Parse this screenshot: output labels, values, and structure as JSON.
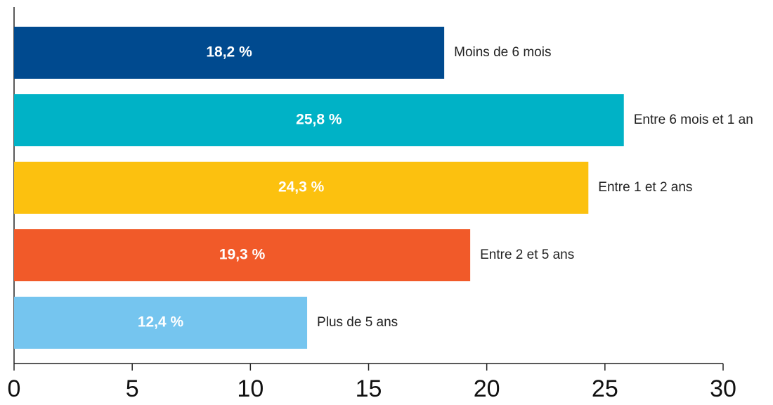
{
  "chart_data": {
    "type": "bar",
    "orientation": "horizontal",
    "categories": [
      "Moins de 6 mois",
      "Entre 6 mois et 1 an",
      "Entre 1 et 2 ans",
      "Entre 2 et 5 ans",
      "Plus de 5 ans"
    ],
    "values": [
      18.2,
      25.8,
      24.3,
      19.3,
      12.4
    ],
    "value_labels": [
      "18,2 %",
      "25,8 %",
      "24,3 %",
      "19,3 %",
      "12,4 %"
    ],
    "colors": [
      "#004a8f",
      "#00b2c6",
      "#fcc10f",
      "#f15a29",
      "#75c5ef"
    ],
    "xlim": [
      0,
      30
    ],
    "xticks": [
      0,
      5,
      10,
      15,
      20,
      25,
      30
    ],
    "grid": false
  }
}
